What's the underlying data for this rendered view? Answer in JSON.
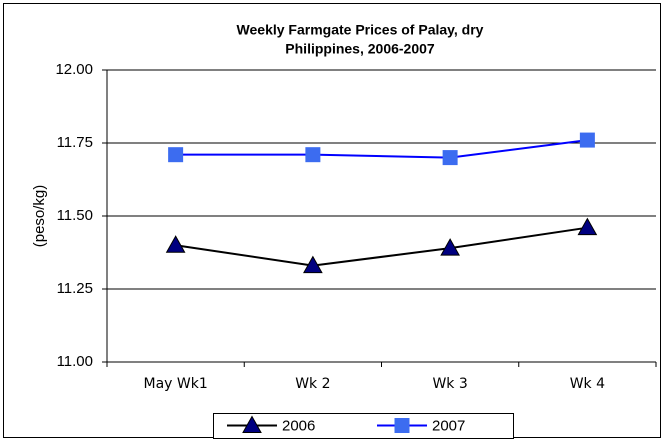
{
  "chart_data": {
    "type": "line",
    "title": [
      "Weekly Farmgate Prices of Palay, dry",
      "Philippines, 2006-2007"
    ],
    "y_label": "(peso/kg)",
    "categories": [
      "May Wk1",
      "Wk 2",
      "Wk 3",
      "Wk 4"
    ],
    "series": [
      {
        "name": "2006",
        "color": "#000000",
        "marker": "triangle",
        "marker_color": "#000080",
        "values": [
          11.4,
          11.33,
          11.39,
          11.46
        ]
      },
      {
        "name": "2007",
        "color": "#0000ff",
        "marker": "square",
        "marker_color": "#3c6cf0",
        "values": [
          11.71,
          11.71,
          11.7,
          11.76
        ]
      }
    ],
    "ylim": [
      11,
      12
    ],
    "yticks": [
      {
        "value": 11,
        "label": "11.00"
      },
      11.25,
      {
        "value": 11.5,
        "label": "11.50"
      },
      11.75,
      {
        "value": 12,
        "label": "12.00"
      }
    ],
    "grid": true,
    "legend": "bottom"
  }
}
